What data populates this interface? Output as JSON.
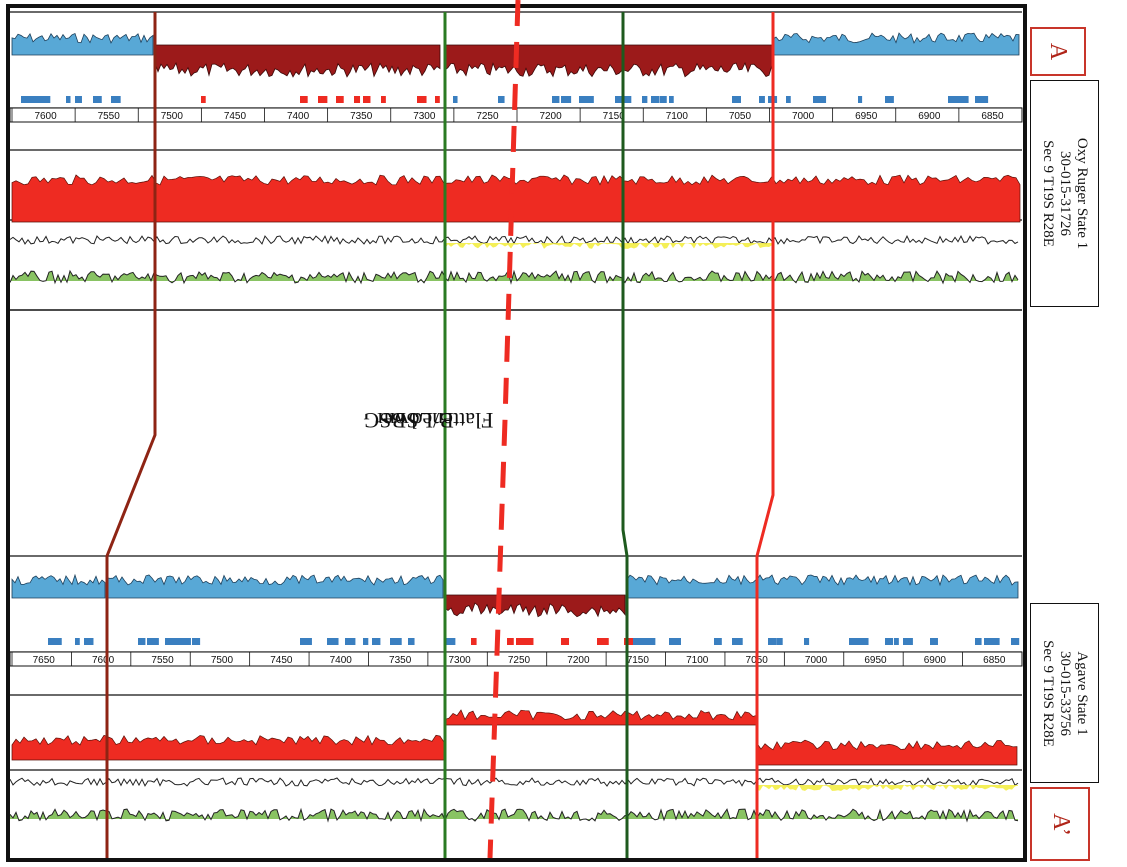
{
  "marker_top": "A",
  "marker_bottom": "A’",
  "well_top": {
    "name": "Oxy Ruger State 1",
    "api": "30-015-31726",
    "location": "Sec 9 T19S R28E"
  },
  "well_bottom": {
    "name": "Agave State 1",
    "api": "30-015-33756",
    "location": "Sec 9 T19S R28E"
  },
  "annotation": [
    "Flattened on",
    "B/Lower",
    "SBSG"
  ],
  "depth_ticks_top": [
    "7600",
    "7550",
    "7500",
    "7450",
    "7400",
    "7350",
    "7300",
    "7250",
    "7200",
    "7150",
    "7100",
    "7050",
    "7000",
    "6950",
    "6900",
    "6850"
  ],
  "depth_ticks_bottom": [
    "7650",
    "7600",
    "7550",
    "7500",
    "7450",
    "7400",
    "7350",
    "7300",
    "7250",
    "7200",
    "7150",
    "7100",
    "7050",
    "7000",
    "6950",
    "6900",
    "6850"
  ],
  "colors": {
    "blue": "#58a8d6",
    "blue_strip": "#3a7fc0",
    "dark_red": "#9c1a1a",
    "red": "#ee2b22",
    "green_line": "#2a7a22",
    "dark_red_line": "#8e2414",
    "yellow": "#f2ec3a",
    "green_fill": "#6cb43c"
  }
}
